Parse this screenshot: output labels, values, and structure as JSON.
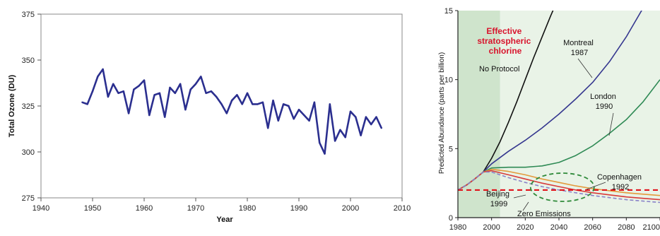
{
  "chart_data": [
    {
      "type": "line",
      "title": "",
      "xlabel": "Year",
      "ylabel": "Total Ozone (DU)",
      "xlim": [
        1940,
        2010
      ],
      "ylim": [
        275,
        375
      ],
      "xticks": [
        "1940",
        "1950",
        "1960",
        "1970",
        "1980",
        "1990",
        "2000",
        "2010"
      ],
      "yticks": [
        "275",
        "300",
        "325",
        "350",
        "375"
      ],
      "line_color": "#2b2f8f",
      "grid": false,
      "series": [
        {
          "x": [
            1948,
            1949,
            1950,
            1951,
            1952,
            1953,
            1954,
            1955,
            1956,
            1957,
            1958,
            1959,
            1960,
            1961,
            1962,
            1963,
            1964,
            1965,
            1966,
            1967,
            1968,
            1969,
            1970,
            1971,
            1972,
            1973,
            1974,
            1975,
            1976,
            1977,
            1978,
            1979,
            1980,
            1981,
            1982,
            1983,
            1984,
            1985,
            1986,
            1987,
            1988,
            1989,
            1990,
            1991,
            1992,
            1993,
            1994,
            1995,
            1996,
            1997,
            1998,
            1999,
            2000,
            2001,
            2002,
            2003,
            2004,
            2005,
            2006
          ],
          "y": [
            327,
            326,
            333,
            341,
            345,
            330,
            337,
            332,
            333,
            321,
            334,
            336,
            339,
            320,
            331,
            332,
            319,
            335,
            332,
            337,
            323,
            334,
            337,
            341,
            332,
            333,
            330,
            326,
            321,
            328,
            331,
            326,
            332,
            326,
            326,
            327,
            313,
            328,
            317,
            326,
            325,
            318,
            323,
            320,
            317,
            327,
            305,
            299,
            326,
            306,
            312,
            308,
            322,
            319,
            309,
            319,
            315,
            319,
            313
          ]
        }
      ]
    },
    {
      "type": "line",
      "title": "Effective stratospheric chlorine",
      "xlabel": "",
      "ylabel": "Predicted Abundance (parts per billion)",
      "xlim": [
        1980,
        2100
      ],
      "ylim": [
        0,
        15
      ],
      "xticks": [
        "1980",
        "2000",
        "2020",
        "2040",
        "2060",
        "2080",
        "2100"
      ],
      "yticks": [
        "0",
        "5",
        "10",
        "15"
      ],
      "title_color": "#d8142c",
      "reference_line": {
        "y": 2.0,
        "color": "#e0141c",
        "style": "dashed"
      },
      "shaded_periods": [
        {
          "x": [
            1980,
            2005
          ],
          "color": "#cfe4cc"
        },
        {
          "x": [
            2005,
            2100
          ],
          "color": "#e9f3e7"
        }
      ],
      "highlight_ellipse": {
        "center": [
          2042,
          2.2
        ],
        "color": "#2f8a3a",
        "style": "dashed"
      },
      "series": [
        {
          "name": "No Protocol",
          "color": "#111111",
          "x": [
            1980,
            1985,
            1990,
            1995,
            2000,
            2005,
            2010,
            2015,
            2020,
            2025,
            2030,
            2035,
            2040,
            2045
          ],
          "y": [
            2.0,
            2.35,
            2.8,
            3.3,
            4.3,
            5.5,
            6.9,
            8.4,
            10.0,
            11.6,
            13.1,
            14.6,
            16.0,
            17.5
          ]
        },
        {
          "name": "Montreal 1987",
          "color": "#35378f",
          "x": [
            1980,
            1985,
            1990,
            1995,
            2000,
            2010,
            2020,
            2030,
            2040,
            2050,
            2060,
            2070,
            2080,
            2090
          ],
          "y": [
            2.0,
            2.35,
            2.8,
            3.3,
            3.9,
            4.8,
            5.6,
            6.5,
            7.5,
            8.6,
            9.8,
            11.3,
            13.1,
            15.2
          ]
        },
        {
          "name": "London 1990",
          "color": "#2f8a55",
          "x": [
            1980,
            1985,
            1990,
            1995,
            2000,
            2010,
            2020,
            2030,
            2040,
            2050,
            2060,
            2070,
            2080,
            2090,
            2100
          ],
          "y": [
            2.0,
            2.35,
            2.8,
            3.3,
            3.6,
            3.65,
            3.65,
            3.75,
            4.0,
            4.5,
            5.2,
            6.1,
            7.1,
            8.4,
            10.0
          ]
        },
        {
          "name": "Copenhagen 1992",
          "color": "#e39a3c",
          "x": [
            1980,
            1985,
            1990,
            1995,
            2000,
            2010,
            2020,
            2030,
            2040,
            2050,
            2060,
            2070,
            2080,
            2090,
            2100
          ],
          "y": [
            2.0,
            2.35,
            2.8,
            3.3,
            3.5,
            3.35,
            3.1,
            2.8,
            2.55,
            2.3,
            2.1,
            1.95,
            1.8,
            1.7,
            1.6
          ]
        },
        {
          "name": "Beijing 1999",
          "color": "#d83a3a",
          "x": [
            1980,
            1985,
            1990,
            1995,
            2000,
            2010,
            2020,
            2030,
            2040,
            2050,
            2060,
            2070,
            2080,
            2090,
            2100
          ],
          "y": [
            2.0,
            2.35,
            2.8,
            3.3,
            3.4,
            3.1,
            2.8,
            2.5,
            2.25,
            2.0,
            1.8,
            1.65,
            1.5,
            1.4,
            1.3
          ]
        },
        {
          "name": "Zero Emissions",
          "color": "#8a82c8",
          "x": [
            1980,
            1985,
            1990,
            1995,
            2000,
            2010,
            2020,
            2030,
            2040,
            2050,
            2060,
            2070,
            2080,
            2090,
            2100
          ],
          "y": [
            2.0,
            2.35,
            2.8,
            3.3,
            3.3,
            2.9,
            2.55,
            2.25,
            2.0,
            1.8,
            1.6,
            1.45,
            1.3,
            1.2,
            1.1
          ]
        }
      ]
    }
  ]
}
